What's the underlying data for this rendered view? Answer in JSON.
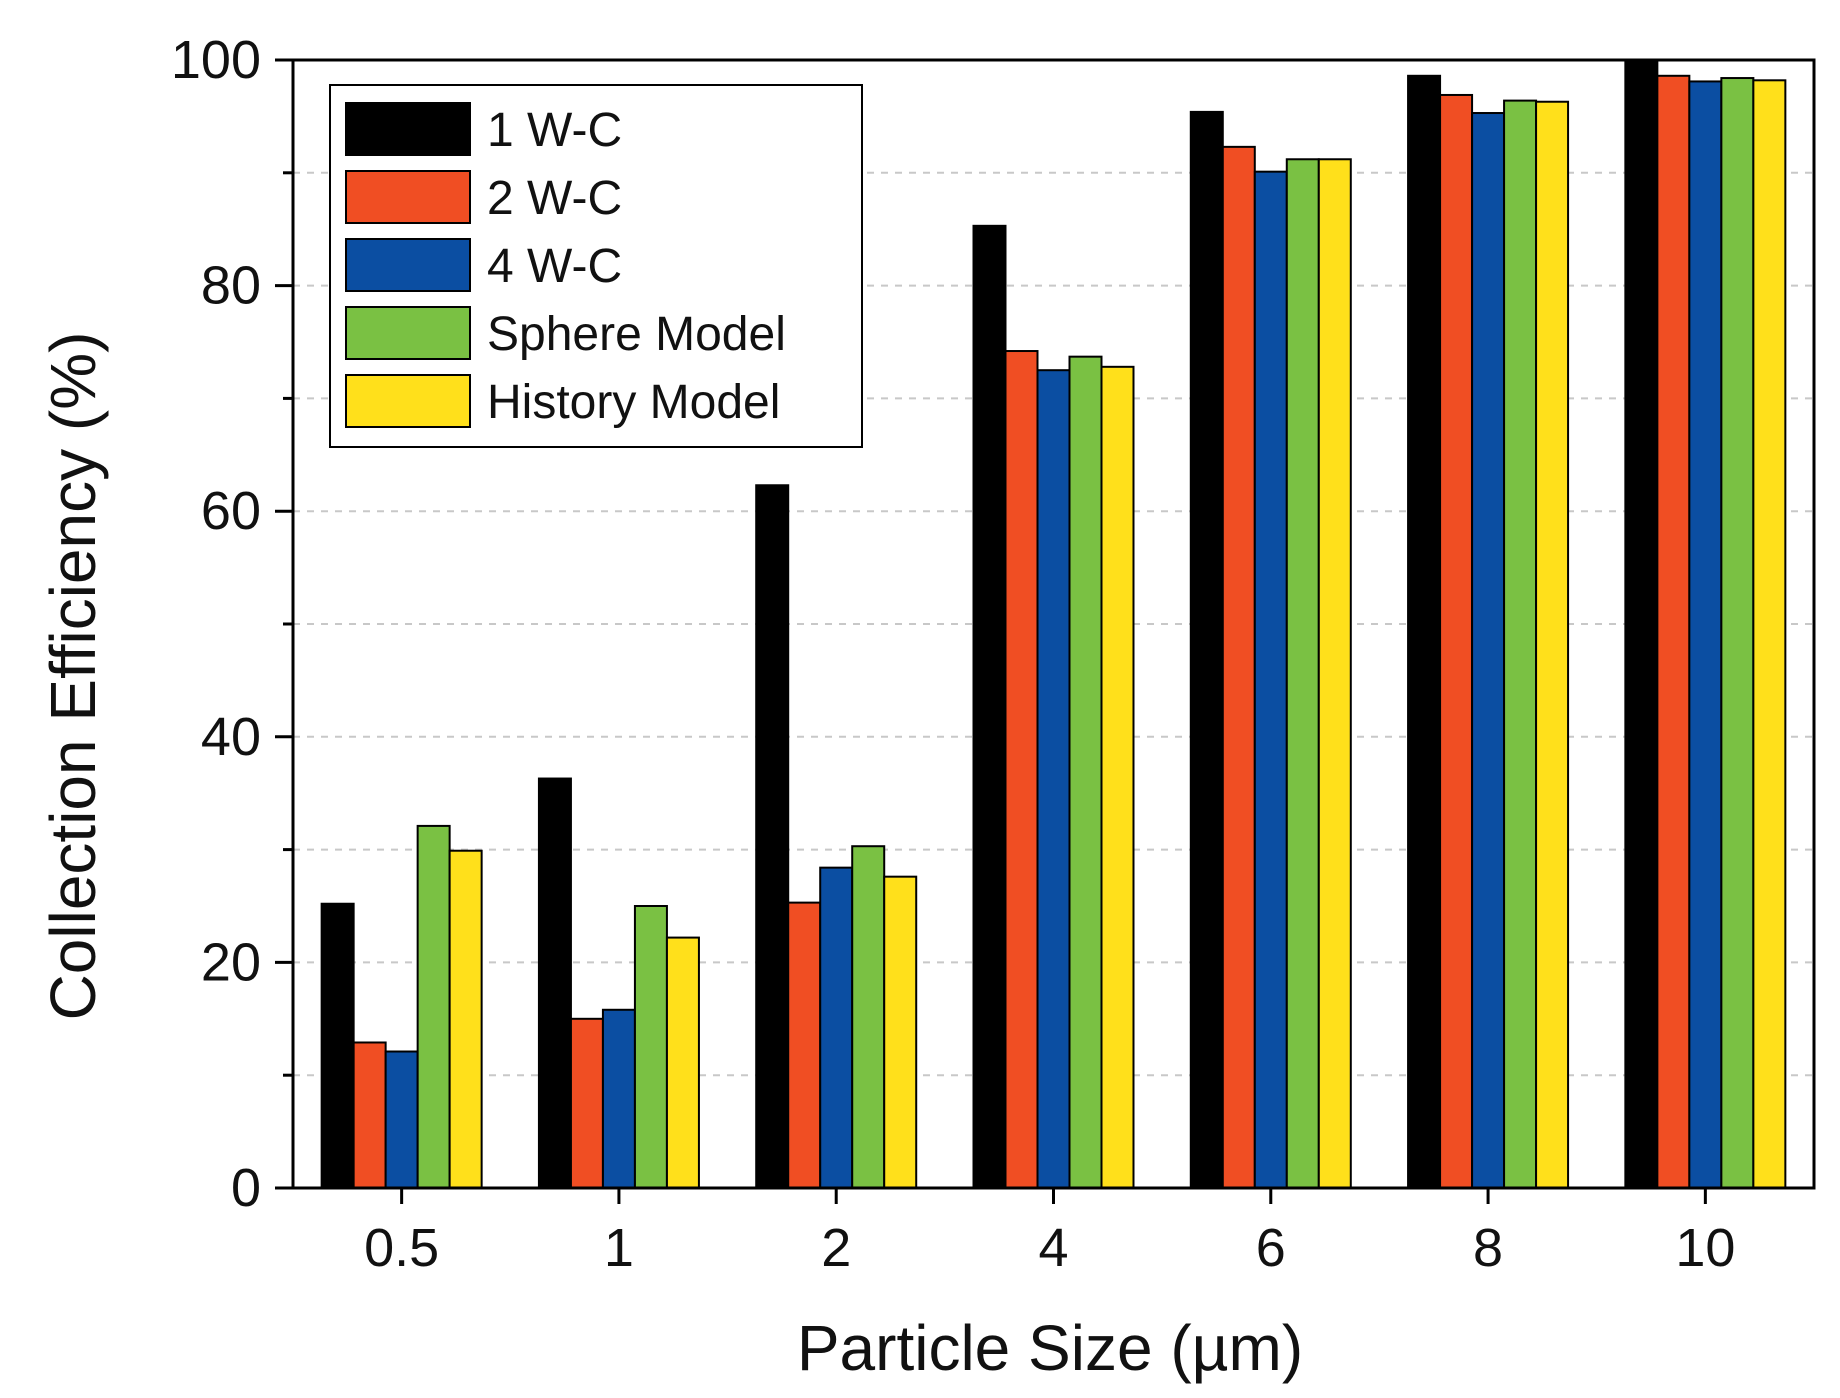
{
  "chart_data": {
    "type": "bar",
    "xlabel": "Particle Size (µm)",
    "ylabel": "Collection Efficiency (%)",
    "categories": [
      "0.5",
      "1",
      "2",
      "4",
      "6",
      "8",
      "10"
    ],
    "ylim": [
      0,
      100
    ],
    "yticks": [
      "0",
      "20",
      "40",
      "60",
      "80",
      "100"
    ],
    "grid": "dashed horizontal lines",
    "legend_position": "top-left",
    "series": [
      {
        "name": "1 W-C",
        "color": "#000000",
        "values": [
          25.2,
          36.3,
          62.3,
          85.3,
          95.4,
          98.6,
          100.0
        ]
      },
      {
        "name": "2 W-C",
        "color": "#f04e23",
        "values": [
          12.9,
          15.0,
          25.3,
          74.2,
          92.3,
          96.9,
          98.6
        ]
      },
      {
        "name": "4 W-C",
        "color": "#0b4ea2",
        "values": [
          12.1,
          15.8,
          28.4,
          72.5,
          90.1,
          95.3,
          98.1
        ]
      },
      {
        "name": "Sphere Model",
        "color": "#7ac143",
        "values": [
          32.1,
          25.0,
          30.3,
          73.7,
          91.2,
          96.4,
          98.4
        ]
      },
      {
        "name": "History Model",
        "color": "#ffe01b",
        "values": [
          29.9,
          22.2,
          27.6,
          72.8,
          91.2,
          96.3,
          98.2
        ]
      }
    ]
  }
}
